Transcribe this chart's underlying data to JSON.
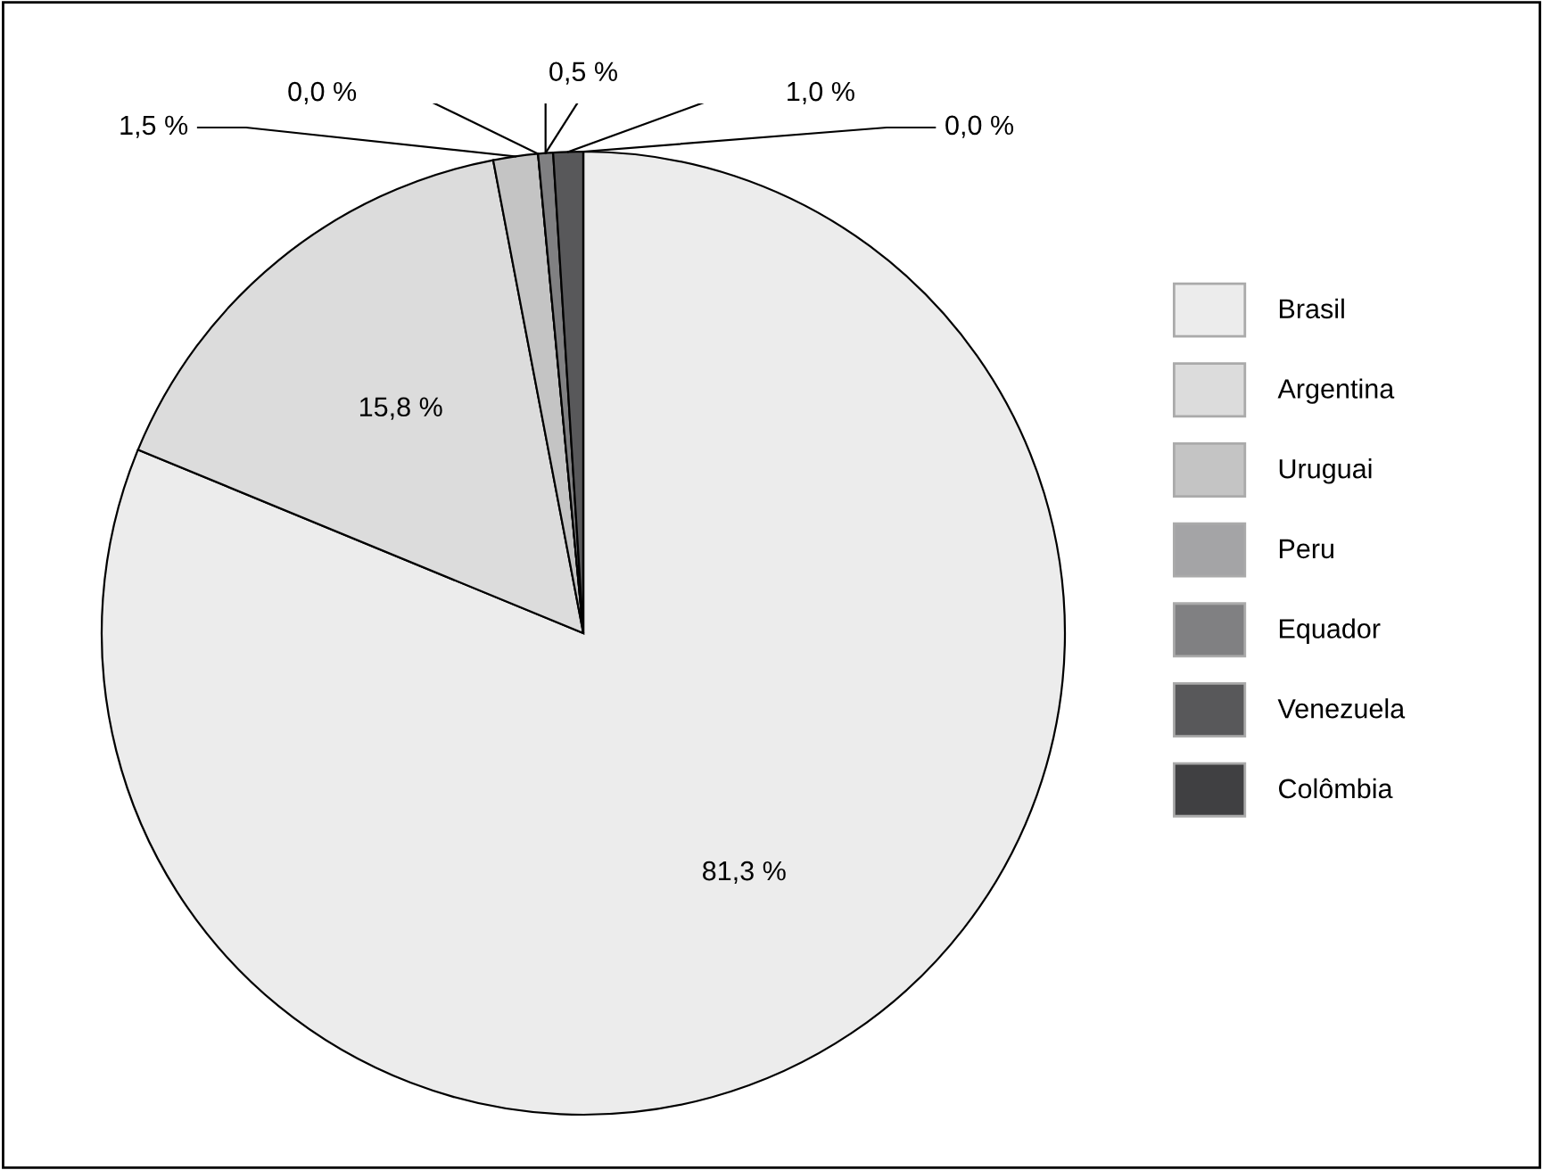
{
  "chart_data": {
    "type": "pie",
    "categories": [
      "Brasil",
      "Argentina",
      "Uruguai",
      "Peru",
      "Equador",
      "Venezuela",
      "Colômbia"
    ],
    "values": [
      81.3,
      15.8,
      1.5,
      0.0,
      0.5,
      1.0,
      0.0
    ],
    "colors": [
      "#ececec",
      "#dcdcdc",
      "#c4c4c4",
      "#a4a4a6",
      "#808082",
      "#58585a",
      "#404042"
    ],
    "value_labels": [
      "81,3 %",
      "15,8 %",
      "1,5 %",
      "0,0 %",
      "0,5 %",
      "1,0 %",
      "0,0 %"
    ],
    "legend": "right"
  }
}
